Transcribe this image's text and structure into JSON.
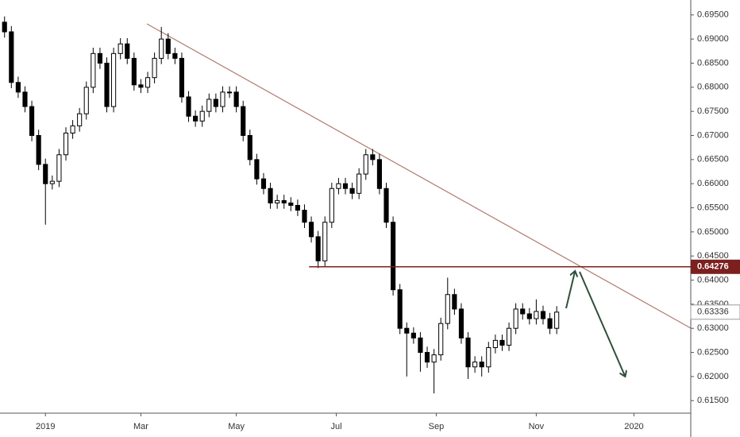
{
  "chart_data": {
    "type": "candlestick",
    "x": [
      -18,
      -15,
      -12,
      -9,
      -6,
      -3,
      0,
      3,
      6,
      9,
      12,
      15,
      18,
      21,
      24,
      27,
      30,
      33,
      36,
      39,
      42,
      45,
      48,
      51,
      54,
      57,
      60,
      63,
      66,
      69,
      72,
      75,
      78,
      81,
      84,
      87,
      90,
      93,
      96,
      99,
      102,
      105,
      108,
      111,
      114,
      117,
      120,
      123,
      126,
      129,
      132,
      135,
      138,
      141,
      144,
      147,
      150,
      153,
      156,
      159,
      162,
      165,
      168,
      171,
      174,
      177,
      180,
      183,
      186,
      189,
      192,
      195,
      198,
      201,
      204,
      207,
      210,
      213,
      216,
      219,
      222,
      225
    ],
    "open": [
      0.6935,
      0.6915,
      0.681,
      0.679,
      0.676,
      0.67,
      0.664,
      0.66,
      0.6605,
      0.666,
      0.6705,
      0.672,
      0.6745,
      0.68,
      0.687,
      0.685,
      0.676,
      0.687,
      0.689,
      0.686,
      0.6805,
      0.68,
      0.682,
      0.686,
      0.69,
      0.687,
      0.686,
      0.678,
      0.674,
      0.673,
      0.675,
      0.6775,
      0.676,
      0.679,
      0.679,
      0.676,
      0.67,
      0.665,
      0.661,
      0.659,
      0.656,
      0.6565,
      0.656,
      0.6555,
      0.6545,
      0.652,
      0.649,
      0.644,
      0.652,
      0.659,
      0.66,
      0.659,
      0.658,
      0.662,
      0.666,
      0.665,
      0.659,
      0.652,
      0.638,
      0.63,
      0.629,
      0.628,
      0.625,
      0.623,
      0.6245,
      0.631,
      0.637,
      0.634,
      0.628,
      0.622,
      0.623,
      0.622,
      0.626,
      0.6275,
      0.6265,
      0.63,
      0.634,
      0.633,
      0.632,
      0.6335,
      0.632,
      0.63
    ],
    "high": [
      0.6947,
      0.6927,
      0.6822,
      0.6802,
      0.6772,
      0.6712,
      0.6652,
      0.6617,
      0.6672,
      0.6717,
      0.6732,
      0.6757,
      0.6812,
      0.6882,
      0.6882,
      0.6862,
      0.6882,
      0.6902,
      0.6902,
      0.6872,
      0.6817,
      0.6832,
      0.6872,
      0.6925,
      0.6912,
      0.6882,
      0.6872,
      0.6792,
      0.6752,
      0.6762,
      0.6787,
      0.6787,
      0.6802,
      0.6802,
      0.6802,
      0.6772,
      0.6712,
      0.6662,
      0.6622,
      0.6602,
      0.6577,
      0.6577,
      0.6572,
      0.6567,
      0.6557,
      0.6532,
      0.6502,
      0.6532,
      0.6602,
      0.6612,
      0.6612,
      0.6602,
      0.6632,
      0.6672,
      0.6672,
      0.6662,
      0.6602,
      0.6532,
      0.6392,
      0.6312,
      0.6302,
      0.6292,
      0.6262,
      0.6257,
      0.6322,
      0.6405,
      0.6382,
      0.6352,
      0.6292,
      0.6242,
      0.6242,
      0.6272,
      0.6287,
      0.6287,
      0.6312,
      0.6352,
      0.6352,
      0.6342,
      0.636,
      0.6347,
      0.6332,
      0.6346
    ],
    "low": [
      0.6903,
      0.6798,
      0.6778,
      0.6748,
      0.6688,
      0.6628,
      0.6515,
      0.6588,
      0.6593,
      0.6648,
      0.6693,
      0.6708,
      0.6733,
      0.6788,
      0.6838,
      0.6748,
      0.6748,
      0.6858,
      0.6848,
      0.6793,
      0.6788,
      0.6788,
      0.6808,
      0.6848,
      0.6858,
      0.6848,
      0.6768,
      0.6728,
      0.6718,
      0.6718,
      0.6738,
      0.6748,
      0.6748,
      0.6778,
      0.6748,
      0.6688,
      0.6638,
      0.6598,
      0.6578,
      0.6548,
      0.6548,
      0.6548,
      0.6543,
      0.6533,
      0.6508,
      0.6478,
      0.6425,
      0.6428,
      0.6508,
      0.6578,
      0.6578,
      0.6568,
      0.6568,
      0.6608,
      0.6638,
      0.6578,
      0.6508,
      0.6368,
      0.6288,
      0.62,
      0.6268,
      0.621,
      0.6218,
      0.6165,
      0.6233,
      0.6298,
      0.6328,
      0.6268,
      0.6195,
      0.6208,
      0.62,
      0.6208,
      0.6248,
      0.6253,
      0.6253,
      0.6288,
      0.6318,
      0.6308,
      0.6308,
      0.6308,
      0.6288,
      0.6288
    ],
    "close": [
      0.6915,
      0.681,
      0.679,
      0.676,
      0.67,
      0.664,
      0.66,
      0.6605,
      0.666,
      0.6705,
      0.672,
      0.6745,
      0.68,
      0.687,
      0.685,
      0.676,
      0.687,
      0.689,
      0.686,
      0.6805,
      0.68,
      0.682,
      0.686,
      0.69,
      0.687,
      0.686,
      0.678,
      0.674,
      0.673,
      0.675,
      0.6775,
      0.676,
      0.679,
      0.679,
      0.676,
      0.67,
      0.665,
      0.661,
      0.659,
      0.656,
      0.6565,
      0.656,
      0.6555,
      0.6545,
      0.652,
      0.649,
      0.644,
      0.652,
      0.659,
      0.66,
      0.659,
      0.658,
      0.662,
      0.666,
      0.665,
      0.659,
      0.652,
      0.638,
      0.63,
      0.629,
      0.628,
      0.625,
      0.623,
      0.6245,
      0.631,
      0.637,
      0.634,
      0.628,
      0.622,
      0.623,
      0.622,
      0.626,
      0.6275,
      0.6265,
      0.63,
      0.634,
      0.633,
      0.632,
      0.6335,
      0.632,
      0.63,
      0.63336
    ],
    "up_color": "#ffffff",
    "down_color": "#000000",
    "xlim": [
      -20,
      284
    ],
    "xticks": [
      {
        "value": 0,
        "label": "2019"
      },
      {
        "value": 42,
        "label": "Mar"
      },
      {
        "value": 84,
        "label": "May"
      },
      {
        "value": 128,
        "label": "Jul"
      },
      {
        "value": 172,
        "label": "Sep"
      },
      {
        "value": 216,
        "label": "Nov"
      },
      {
        "value": 259,
        "label": "2020"
      }
    ],
    "ylim": [
      0.6124,
      0.6981
    ],
    "yticks": [
      {
        "value": 0.615,
        "label": "0.61500"
      },
      {
        "value": 0.62,
        "label": "0.62000"
      },
      {
        "value": 0.625,
        "label": "0.62500"
      },
      {
        "value": 0.63,
        "label": "0.63000"
      },
      {
        "value": 0.635,
        "label": "0.63500"
      },
      {
        "value": 0.64,
        "label": "0.64000"
      },
      {
        "value": 0.645,
        "label": "0.64500"
      },
      {
        "value": 0.65,
        "label": "0.65000"
      },
      {
        "value": 0.655,
        "label": "0.65500"
      },
      {
        "value": 0.66,
        "label": "0.66000"
      },
      {
        "value": 0.665,
        "label": "0.66500"
      },
      {
        "value": 0.67,
        "label": "0.67000"
      },
      {
        "value": 0.675,
        "label": "0.67500"
      },
      {
        "value": 0.68,
        "label": "0.68000"
      },
      {
        "value": 0.685,
        "label": "0.68500"
      },
      {
        "value": 0.69,
        "label": "0.69000"
      },
      {
        "value": 0.695,
        "label": "0.69500"
      }
    ],
    "price_line": 0.64276,
    "price_line_color": "#7b1f1f",
    "last_price": 0.63336
  }
}
